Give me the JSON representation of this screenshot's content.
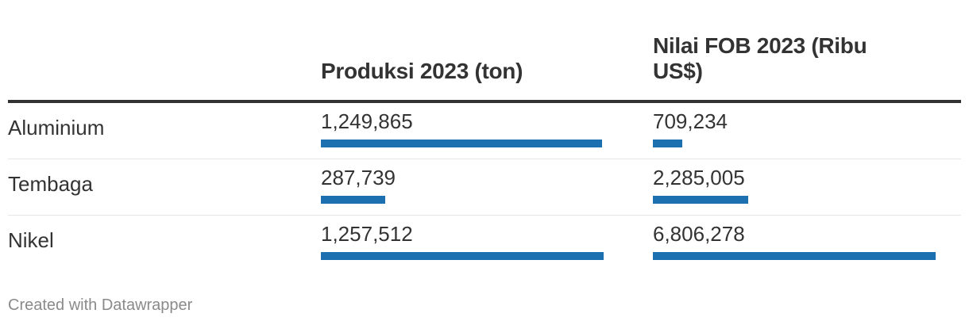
{
  "chart_data": {
    "type": "table",
    "columns": [
      "Produksi 2023 (ton)",
      "Nilai FOB 2023 (Ribu US$)"
    ],
    "rows": [
      {
        "label": "Aluminium",
        "values": [
          "1,249,865",
          "709,234"
        ],
        "numeric": [
          1249865,
          709234
        ]
      },
      {
        "label": "Tembaga",
        "values": [
          "287,739",
          "2,285,005"
        ],
        "numeric": [
          287739,
          2285005
        ]
      },
      {
        "label": "Nikel",
        "values": [
          "1,257,512",
          "6,806,278"
        ],
        "numeric": [
          1257512,
          6806278
        ]
      }
    ],
    "bar_color": "#1d70b0"
  },
  "footer": "Created with Datawrapper"
}
